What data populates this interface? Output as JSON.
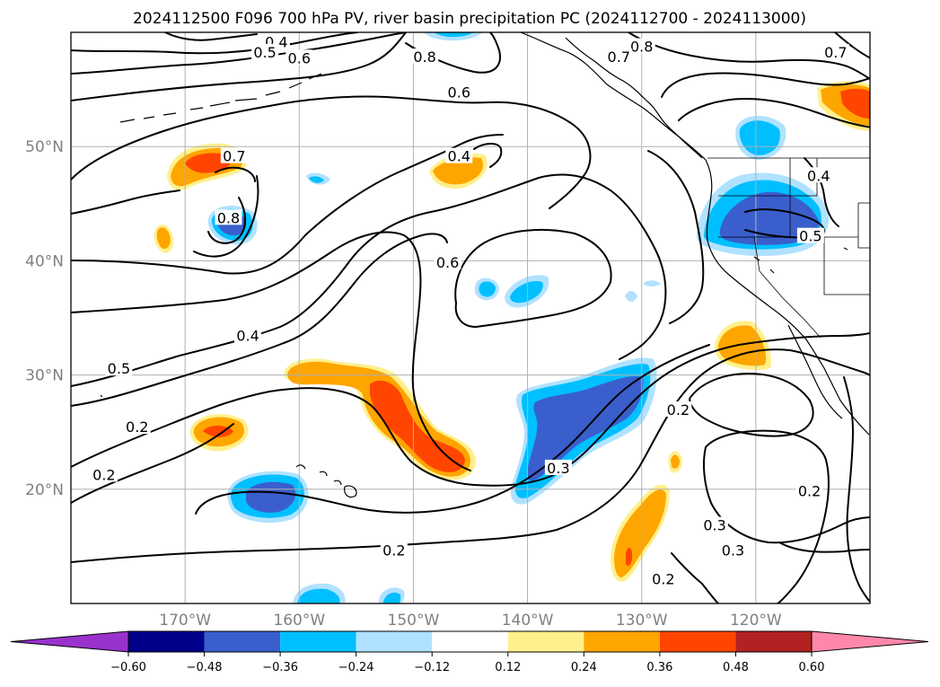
{
  "title": "2024112500 F096 700 hPa PV, river basin precipitation PC (2024112700 - 2024113000)",
  "map": {
    "lon_min": -180,
    "lon_max": -110,
    "lat_min": 10,
    "lat_max": 60,
    "lat_ticks": [
      {
        "v": 20,
        "label": "20°N"
      },
      {
        "v": 30,
        "label": "30°N"
      },
      {
        "v": 40,
        "label": "40°N"
      },
      {
        "v": 50,
        "label": "50°N"
      }
    ],
    "lon_ticks": [
      {
        "v": -170,
        "label": "170°W"
      },
      {
        "v": -160,
        "label": "160°W"
      },
      {
        "v": -150,
        "label": "150°W"
      },
      {
        "v": -140,
        "label": "140°W"
      },
      {
        "v": -130,
        "label": "130°W"
      },
      {
        "v": -120,
        "label": "120°W"
      }
    ],
    "grid": true
  },
  "colorbar": {
    "levels": [
      -0.6,
      -0.48,
      -0.36,
      -0.24,
      -0.12,
      0.12,
      0.24,
      0.36,
      0.48,
      0.6
    ],
    "tick_labels": [
      "−0.60",
      "−0.48",
      "−0.36",
      "−0.24",
      "−0.12",
      "0.12",
      "0.24",
      "0.36",
      "0.48",
      "0.60"
    ],
    "colors": [
      "#9932cc",
      "#00008b",
      "#3a5fcd",
      "#00bfff",
      "#b0e2ff",
      "#ffffff",
      "#fff08c",
      "#ffa500",
      "#ff4500",
      "#b22222",
      "#ff88aa"
    ],
    "extend": "both"
  },
  "contour_labels": [
    {
      "text": "0.4",
      "lon": -162.0,
      "lat": 59.1
    },
    {
      "text": "0.5",
      "lon": -163.0,
      "lat": 58.2
    },
    {
      "text": "0.6",
      "lon": -160.0,
      "lat": 57.7
    },
    {
      "text": "0.8",
      "lon": -149.0,
      "lat": 57.8
    },
    {
      "text": "0.8",
      "lon": -130.0,
      "lat": 58.7
    },
    {
      "text": "0.7",
      "lon": -132.0,
      "lat": 57.8
    },
    {
      "text": "0.7",
      "lon": -113.0,
      "lat": 58.2
    },
    {
      "text": "0.6",
      "lon": -146.0,
      "lat": 54.7
    },
    {
      "text": "0.4",
      "lon": -146.0,
      "lat": 49.1
    },
    {
      "text": "0.7",
      "lon": -165.7,
      "lat": 49.1
    },
    {
      "text": "0.8",
      "lon": -166.2,
      "lat": 43.7
    },
    {
      "text": "0.4",
      "lon": -114.5,
      "lat": 47.4
    },
    {
      "text": "0.5",
      "lon": -115.2,
      "lat": 42.1
    },
    {
      "text": "0.6",
      "lon": -147.0,
      "lat": 39.8
    },
    {
      "text": "0.4",
      "lon": -164.5,
      "lat": 33.4
    },
    {
      "text": "0.5",
      "lon": -175.8,
      "lat": 30.5
    },
    {
      "text": "0.2",
      "lon": -174.2,
      "lat": 25.4
    },
    {
      "text": "0.2",
      "lon": -126.8,
      "lat": 26.9
    },
    {
      "text": "0.2",
      "lon": -177.1,
      "lat": 21.2
    },
    {
      "text": "0.3",
      "lon": -137.3,
      "lat": 21.8
    },
    {
      "text": "0.3",
      "lon": -123.6,
      "lat": 16.8
    },
    {
      "text": "0.2",
      "lon": -115.3,
      "lat": 19.8
    },
    {
      "text": "0.3",
      "lon": -122.0,
      "lat": 14.6
    },
    {
      "text": "0.2",
      "lon": -151.7,
      "lat": 14.6
    },
    {
      "text": "0.2",
      "lon": -128.1,
      "lat": 12.1
    }
  ]
}
